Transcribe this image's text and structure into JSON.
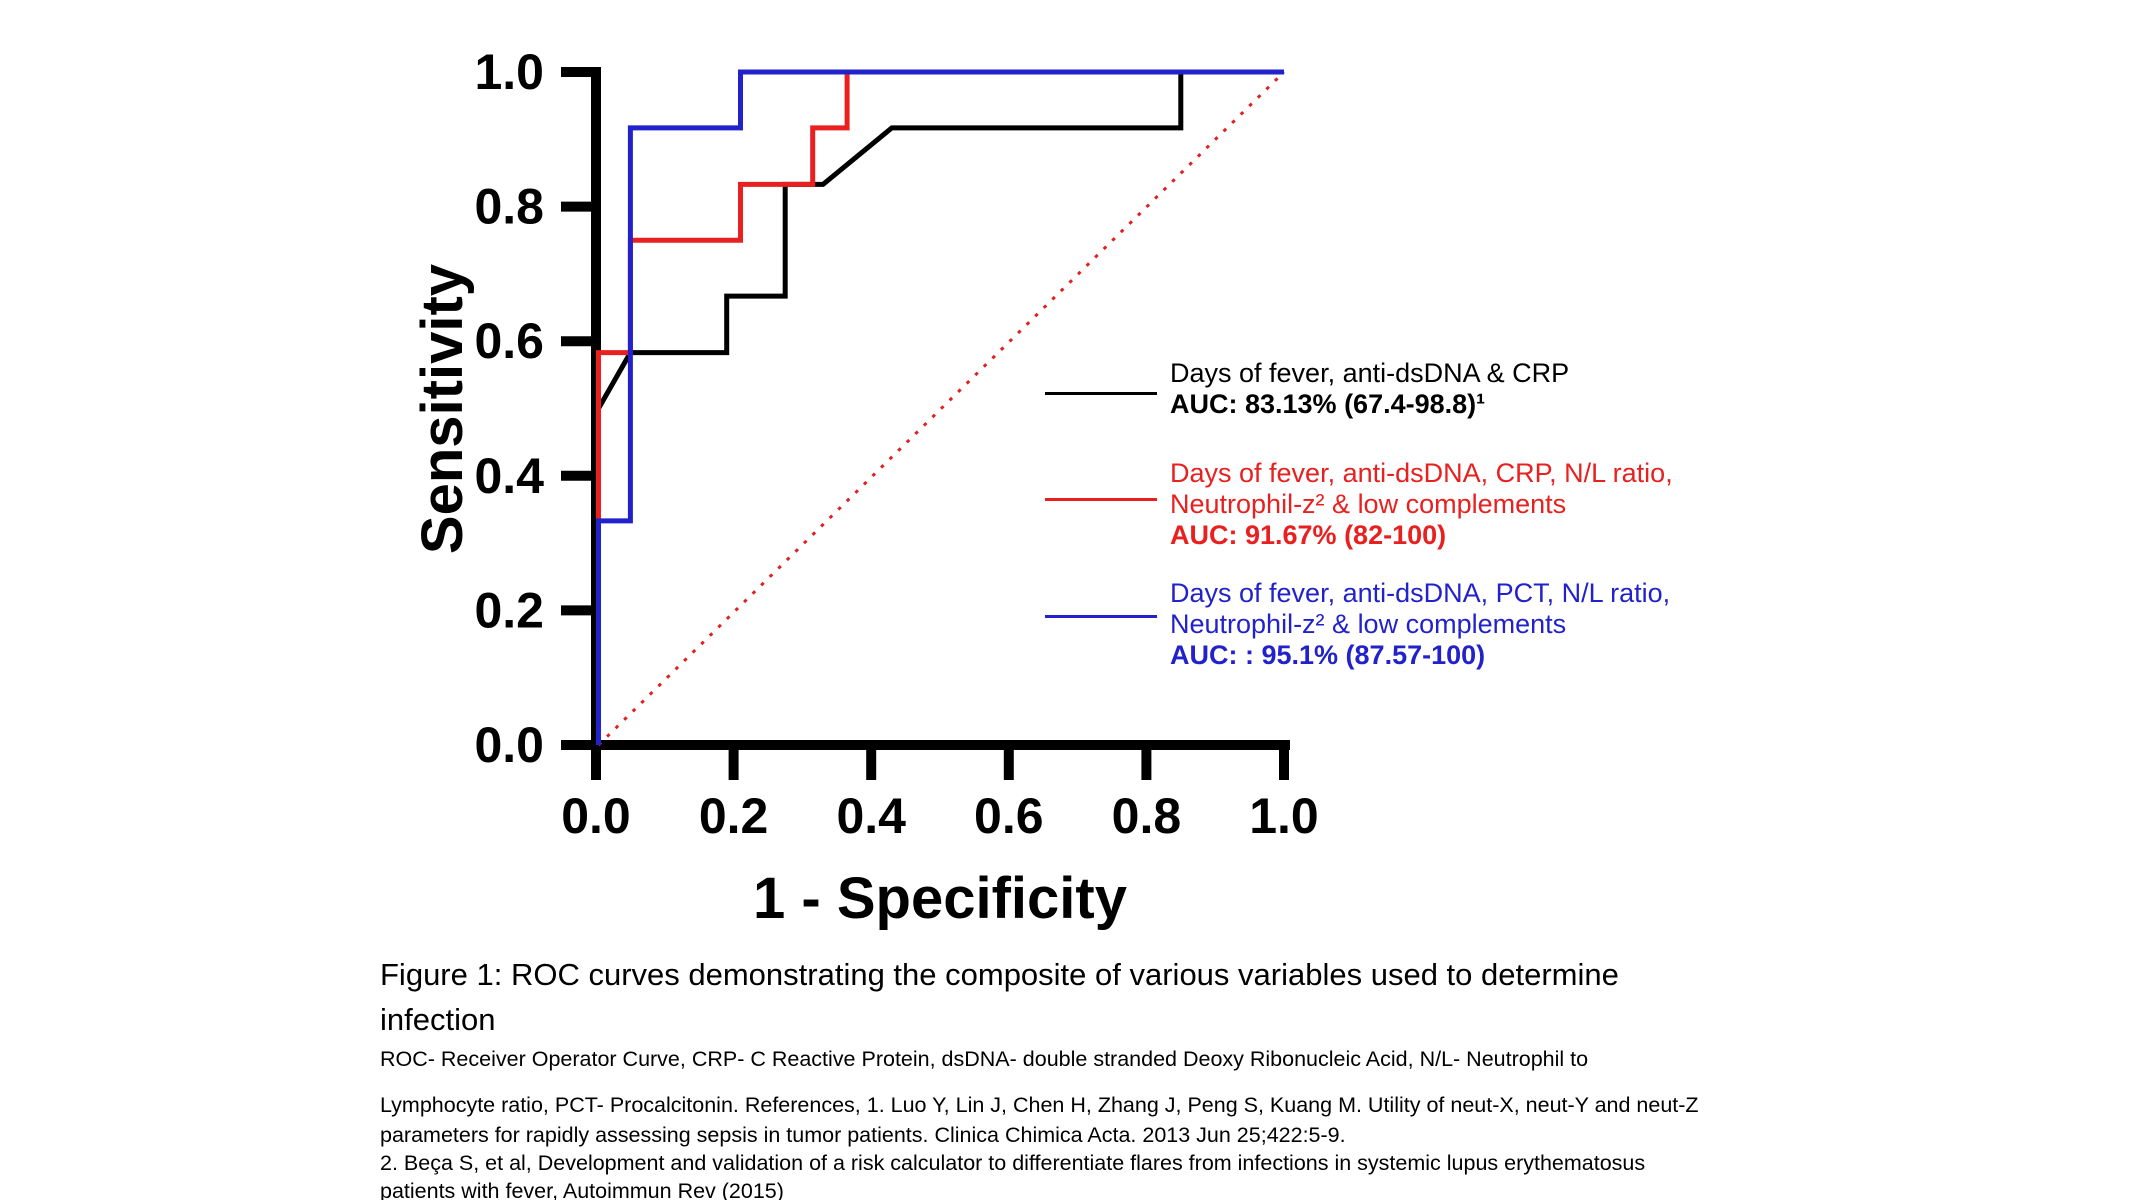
{
  "chart_data": {
    "type": "line",
    "title": "",
    "xlabel": "1 - Specificity",
    "ylabel": "Sensitivity",
    "xlim": [
      0,
      1
    ],
    "ylim": [
      0,
      1
    ],
    "xticks": [
      "0.0",
      "0.2",
      "0.4",
      "0.6",
      "0.8",
      "1.0"
    ],
    "yticks": [
      "0.0",
      "0.2",
      "0.4",
      "0.6",
      "0.8",
      "1.0"
    ],
    "grid": false,
    "legend_position": "right-center",
    "axis_color": "#000000",
    "series": [
      {
        "name": "Reference diagonal (chance line)",
        "color": "#E02020",
        "style": "dotted",
        "points": [
          [
            0,
            0
          ],
          [
            1,
            1
          ]
        ]
      },
      {
        "name": "Days of fever, anti-dsDNA & CRP (AUC 83.13%)",
        "color": "#000000",
        "style": "solid",
        "points": [
          [
            0,
            0
          ],
          [
            0,
            0.5
          ],
          [
            0.05,
            0.583
          ],
          [
            0.19,
            0.583
          ],
          [
            0.19,
            0.667
          ],
          [
            0.275,
            0.667
          ],
          [
            0.275,
            0.833
          ],
          [
            0.33,
            0.833
          ],
          [
            0.43,
            0.917
          ],
          [
            0.85,
            0.917
          ],
          [
            0.85,
            1.0
          ],
          [
            1,
            1
          ]
        ]
      },
      {
        "name": "Days of fever, anti-dsDNA, CRP, N/L ratio, Neutrophil-z & low complements (AUC 91.67%)",
        "color": "#E8201F",
        "style": "solid",
        "points": [
          [
            0,
            0
          ],
          [
            0,
            0.583
          ],
          [
            0.05,
            0.583
          ],
          [
            0.05,
            0.75
          ],
          [
            0.21,
            0.75
          ],
          [
            0.21,
            0.833
          ],
          [
            0.315,
            0.833
          ],
          [
            0.315,
            0.917
          ],
          [
            0.365,
            0.917
          ],
          [
            0.365,
            1.0
          ],
          [
            1,
            1
          ]
        ]
      },
      {
        "name": "Days of fever, anti-dsDNA, PCT, N/L ratio, Neutrophil-z & low complements (AUC 95.1%)",
        "color": "#2222CC",
        "style": "solid",
        "points": [
          [
            0,
            0
          ],
          [
            0,
            0.333
          ],
          [
            0.05,
            0.333
          ],
          [
            0.05,
            0.917
          ],
          [
            0.21,
            0.917
          ],
          [
            0.21,
            1.0
          ],
          [
            1,
            1
          ]
        ]
      }
    ]
  },
  "legend": {
    "entries": [
      {
        "color": "#000000",
        "lines": [
          "Days of fever, anti-dsDNA & CRP"
        ],
        "auc": "AUC: 83.13% (67.4-98.8)¹"
      },
      {
        "color": "#E8201F",
        "lines": [
          "Days of fever, anti-dsDNA, CRP, N/L ratio,",
          "Neutrophil-z² & low complements"
        ],
        "auc": "AUC: 91.67% (82-100)"
      },
      {
        "color": "#2222CC",
        "lines": [
          "Days of fever, anti-dsDNA, PCT, N/L ratio,",
          "Neutrophil-z² & low complements"
        ],
        "auc": "AUC: : 95.1% (87.57-100)"
      }
    ]
  },
  "caption": {
    "title_line1": "Figure 1: ROC curves demonstrating the composite of various variables used to determine",
    "title_line2": "infection",
    "notes": [
      "ROC- Receiver Operator Curve, CRP- C Reactive Protein, dsDNA- double stranded  Deoxy Ribonucleic Acid, N/L- Neutrophil to",
      "Lymphocyte ratio, PCT- Procalcitonin.   References, 1. Luo Y, Lin J, Chen H, Zhang J, Peng S, Kuang M. Utility of neut-X, neut-Y and neut-Z",
      "parameters for rapidly assessing sepsis in tumor patients. Clinica Chimica Acta. 2013 Jun 25;422:5-9.",
      "2. Beça S, et al, Development and validation of a risk calculator to differentiate flares from infections in systemic lupus erythematosus",
      "patients with fever, Autoimmun Rev (2015)"
    ]
  }
}
